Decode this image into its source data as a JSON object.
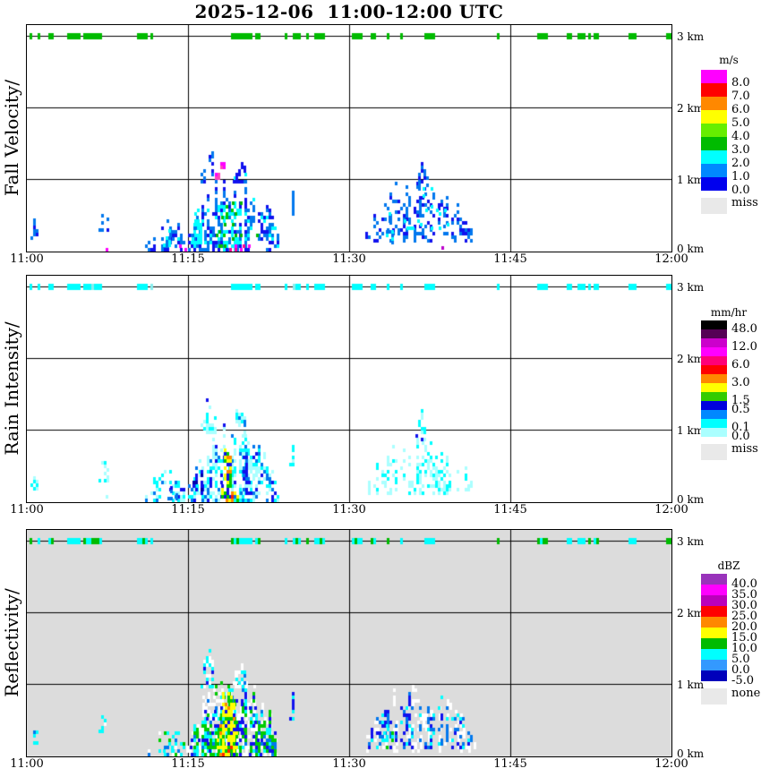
{
  "chart_data": {
    "type": "heatmap",
    "title": "2025-12-06  11:00-12:00 UTC",
    "time_axis": {
      "start": "11:00",
      "end": "12:00",
      "ticks": [
        "11:00",
        "11:15",
        "11:30",
        "11:45",
        "12:00"
      ],
      "gridlines": [
        "11:15",
        "11:30",
        "11:45"
      ],
      "minutes_total": 60
    },
    "height_axis": {
      "unit": "km",
      "min_km": 0,
      "max_km": 3.16,
      "ticks": [
        "3 km",
        "2 km",
        "1 km",
        "0 km"
      ],
      "gridlines_km": [
        3,
        2,
        1
      ]
    },
    "seed": 20251206,
    "ridge_seed": 77,
    "panels": [
      {
        "id": "fall-velocity",
        "label": "Fall Velocity/",
        "unit": "m/s",
        "background": "#FFFFFF",
        "legend": {
          "title": "m/s",
          "bands": [
            {
              "color": "#FF00FF",
              "label": "8.0"
            },
            {
              "color": "#FF0000",
              "label": "7.0"
            },
            {
              "color": "#FF8800",
              "label": "6.0"
            },
            {
              "color": "#FFFF00",
              "label": "5.0"
            },
            {
              "color": "#66EE00",
              "label": "4.0"
            },
            {
              "color": "#00BB00",
              "label": "3.0"
            },
            {
              "color": "#00FFFF",
              "label": "2.0"
            },
            {
              "color": "#0088FF",
              "label": "1.0"
            },
            {
              "color": "#0000EE",
              "label": "0.0"
            }
          ],
          "missing": {
            "color": "#E9E9E9",
            "label": "miss"
          }
        },
        "ridge": {
          "height_km": 3.0,
          "c": {
            "#00BB00": 30,
            "#2233EE": 0.5,
            "#DD00DD": 0.4
          }
        },
        "layers": [
          {
            "t": [
              0.35,
              0.95
            ],
            "h": [
              0.16,
              0.44
            ],
            "d": 0.5,
            "c": {
              "#0077EE": 2,
              "#1111EE": 1
            }
          },
          {
            "t": [
              6.7,
              7.55
            ],
            "h": [
              0.28,
              0.64
            ],
            "d": 0.5,
            "c": {
              "#0077EE": 3,
              "#1111EE": 1
            }
          },
          {
            "t": [
              6.85,
              7.6
            ],
            "h": [
              0,
              0.13
            ],
            "d": 0.35,
            "c": {
              "#FF00FF": 1,
              "#FF0099": 1
            }
          },
          {
            "t": [
              11,
              14.7
            ],
            "h": [
              0,
              0.5
            ],
            "d": 0.42,
            "c": {
              "#0077EE": 3,
              "#1111EE": 2,
              "#00FFFF": 1
            }
          },
          {
            "t": [
              12.7,
              13.6
            ],
            "h": [
              0.06,
              0.34
            ],
            "d": 0.75,
            "c": {
              "#00FFFF": 1,
              "#0077EE": 0.4
            }
          },
          {
            "t": [
              13.9,
              14.75
            ],
            "h": [
              0,
              0.14
            ],
            "d": 0.4,
            "c": {
              "#FF00FF": 1,
              "#FF44CC": 0.5
            }
          },
          {
            "t": [
              15,
              23.4
            ],
            "h": [
              0,
              1.08
            ],
            "d": 0.55,
            "c": {
              "#0077EE": 5,
              "#1111EE": 3,
              "#00FFFF": 2.5
            }
          },
          {
            "t": [
              16.2,
              17.7
            ],
            "h": [
              0.95,
              1.5
            ],
            "d": 0.5,
            "c": {
              "#1111EE": 2,
              "#0077EE": 1
            }
          },
          {
            "t": [
              19.2,
              20.3
            ],
            "h": [
              0.95,
              1.38
            ],
            "d": 0.45,
            "c": {
              "#1111EE": 2,
              "#0077EE": 1
            }
          },
          {
            "t": [
              15.3,
              16.2
            ],
            "h": [
              0.1,
              0.78
            ],
            "d": 0.8,
            "c": {
              "#00FFFF": 1
            }
          },
          {
            "t": [
              18,
              19.3
            ],
            "h": [
              0.05,
              0.95
            ],
            "d": 0.6,
            "c": {
              "#00FFFF": 1,
              "#00CC00": 0.25
            }
          },
          {
            "t": [
              16.8,
              21.4
            ],
            "h": [
              0.05,
              0.85
            ],
            "d": 0.1,
            "c": {
              "#00BB00": 1
            }
          },
          {
            "t": [
              17.5,
              18.6
            ],
            "h": [
              1.0,
              1.32
            ],
            "d": 0.5,
            "c": {
              "#FF00FF": 1.5,
              "#FF44BB": 1
            }
          },
          {
            "t": [
              18.8,
              21.6
            ],
            "h": [
              0,
              0.1
            ],
            "d": 0.3,
            "c": {
              "#FF0099": 1,
              "#FF00FF": 1
            }
          },
          {
            "t": [
              24.45,
              24.85
            ],
            "h": [
              0.5,
              0.88
            ],
            "d": 0.85,
            "c": {
              "#0077EE": 1
            }
          },
          {
            "t": [
              31.5,
              41.5
            ],
            "h": [
              0.12,
              1.02
            ],
            "d": 0.38,
            "cd": 0.8,
            "c": {
              "#0077EE": 4,
              "#1111EE": 2
            }
          },
          {
            "t": [
              32.9,
              34.1
            ],
            "h": [
              0.1,
              0.52
            ],
            "d": 0.5,
            "c": {
              "#00FFFF": 1,
              "#0077EE": 0.8
            }
          },
          {
            "t": [
              36.2,
              37.3
            ],
            "h": [
              0.85,
              1.3
            ],
            "d": 0.5,
            "c": {
              "#1111EE": 1.2,
              "#0077EE": 1
            }
          },
          {
            "t": [
              34.8,
              39.3
            ],
            "h": [
              0.3,
              0.95
            ],
            "d": 0.1,
            "c": {
              "#00FFFF": 1
            }
          },
          {
            "t": [
              38.6,
              38.95
            ],
            "h": [
              0.02,
              0.09
            ],
            "d": 0.9,
            "c": {
              "#BB00CC": 1
            }
          }
        ]
      },
      {
        "id": "rain-intensity",
        "label": "Rain Intensity/",
        "unit": "mm/hr",
        "background": "#FFFFFF",
        "legend": {
          "title": "mm/hr",
          "bands": [
            {
              "color": "#000000",
              "label": "48.0"
            },
            {
              "color": "#550055"
            },
            {
              "color": "#CC00CC",
              "label": "12.0"
            },
            {
              "color": "#FF00FF"
            },
            {
              "color": "#FF0077",
              "label": "6.0"
            },
            {
              "color": "#FF0000"
            },
            {
              "color": "#FF8800",
              "label": "3.0"
            },
            {
              "color": "#FFFF00"
            },
            {
              "color": "#33CC00",
              "label": "1.5"
            },
            {
              "color": "#0000DD",
              "label": "0.5"
            },
            {
              "color": "#0088FF"
            },
            {
              "color": "#00FFFF",
              "label": "0.1"
            },
            {
              "color": "#AAFFFF",
              "label": "0.0"
            }
          ],
          "missing": {
            "color": "#E9E9E9",
            "label": "miss"
          }
        },
        "ridge": {
          "height_km": 3.0,
          "c": {
            "#00FFFF": 20,
            "#88EEEE": 2
          }
        },
        "layers": [
          {
            "t": [
              0.35,
              0.95
            ],
            "h": [
              0.16,
              0.44
            ],
            "d": 0.5,
            "c": {
              "#00FFFF": 2,
              "#AAFFFF": 1
            }
          },
          {
            "t": [
              6.7,
              7.55
            ],
            "h": [
              0.28,
              0.64
            ],
            "d": 0.5,
            "c": {
              "#00FFFF": 2,
              "#AAFFFF": 1.2,
              "#0077EE": 0.4
            }
          },
          {
            "t": [
              6.85,
              7.6
            ],
            "h": [
              0,
              0.12
            ],
            "d": 0.3,
            "c": {
              "#AAFFFF": 1.5,
              "#1111EE": 0.4
            }
          },
          {
            "t": [
              11,
              14.7
            ],
            "h": [
              0,
              0.5
            ],
            "d": 0.45,
            "c": {
              "#AAFFFF": 2.5,
              "#00FFFF": 2,
              "#0077EE": 1,
              "#1111EE": 0.6
            }
          },
          {
            "t": [
              13.1,
              13.9
            ],
            "h": [
              0.03,
              0.28
            ],
            "d": 0.7,
            "c": {
              "#1111EE": 1,
              "#0077EE": 0.5
            }
          },
          {
            "t": [
              15,
              23.4
            ],
            "h": [
              0,
              1.08
            ],
            "d": 0.62,
            "c": {
              "#AAFFFF": 4,
              "#00FFFF": 3,
              "#0077EE": 1.5,
              "#1111EE": 1
            }
          },
          {
            "t": [
              16.2,
              17.7
            ],
            "h": [
              0.95,
              1.5
            ],
            "d": 0.5,
            "c": {
              "#AAFFFF": 1.5,
              "#00FFFF": 1,
              "#1111EE": 1
            }
          },
          {
            "t": [
              19.2,
              20.3
            ],
            "h": [
              0.95,
              1.38
            ],
            "d": 0.45,
            "c": {
              "#AAFFFF": 1.5,
              "#00FFFF": 1,
              "#0077EE": 0.7
            }
          },
          {
            "t": [
              15.4,
              16.2
            ],
            "h": [
              0.1,
              0.95
            ],
            "d": 0.7,
            "c": {
              "#1111EE": 2,
              "#0000AA": 1,
              "#0077EE": 1
            }
          },
          {
            "t": [
              18.1,
              19.4
            ],
            "h": [
              0.05,
              1.0
            ],
            "d": 0.75,
            "c": {
              "#FFFF00": 2,
              "#1111EE": 1,
              "#00CC00": 0.7,
              "#FF8800": 0.35,
              "#FF2200": 0.25
            }
          },
          {
            "t": [
              19.8,
              20.6
            ],
            "h": [
              0.05,
              0.8
            ],
            "d": 0.6,
            "c": {
              "#1111EE": 1.5,
              "#0077EE": 1
            }
          },
          {
            "t": [
              18.5,
              19.6
            ],
            "h": [
              0,
              0.2
            ],
            "d": 0.8,
            "c": {
              "#FFFF00": 1.5,
              "#FF8800": 0.8,
              "#FF2200": 0.4,
              "#00CC00": 0.5
            }
          },
          {
            "t": [
              24.45,
              24.85
            ],
            "h": [
              0.5,
              0.88
            ],
            "d": 0.8,
            "c": {
              "#00FFFF": 1,
              "#AAFFFF": 0.6
            }
          },
          {
            "t": [
              31.5,
              41.5
            ],
            "h": [
              0.1,
              0.95
            ],
            "d": 0.33,
            "cd": 0.8,
            "c": {
              "#AAFFFF": 3,
              "#00FFFF": 1.5
            }
          },
          {
            "t": [
              35.5,
              39.5
            ],
            "h": [
              0.1,
              0.75
            ],
            "d": 0.35,
            "c": {
              "#00FFFF": 1,
              "#AAFFFF": 1
            }
          },
          {
            "t": [
              36.2,
              37
            ],
            "h": [
              0.85,
              1.28
            ],
            "d": 0.6,
            "c": {
              "#00FFFF": 1.5,
              "#AAFFFF": 0.5,
              "#1111EE": 0.15
            }
          }
        ]
      },
      {
        "id": "reflectivity",
        "label": "Reflectivity/",
        "unit": "dBZ",
        "background": "#DCDCDC",
        "legend": {
          "title": "dBZ",
          "bands": [
            {
              "color": "#9933BB",
              "label": "40.0"
            },
            {
              "color": "#FF00FF",
              "label": "35.0"
            },
            {
              "color": "#BB00BB",
              "label": "30.0"
            },
            {
              "color": "#FF0000",
              "label": "25.0"
            },
            {
              "color": "#FF8800",
              "label": "20.0"
            },
            {
              "color": "#FFFF00",
              "label": "15.0"
            },
            {
              "color": "#00BB00",
              "label": "10.0"
            },
            {
              "color": "#00FFFF",
              "label": "5.0"
            },
            {
              "color": "#3399FF",
              "label": "0.0"
            },
            {
              "color": "#0000BB",
              "label": "-5.0"
            }
          ],
          "missing": {
            "color": "#E9E9E9",
            "label": "none"
          }
        },
        "ridge": {
          "height_km": 3.0,
          "c": {
            "#00BB00": 10,
            "#00FFFF": 12
          }
        },
        "layers": [
          {
            "t": [
              0.35,
              0.95
            ],
            "h": [
              0.16,
              0.44
            ],
            "d": 0.5,
            "c": {
              "#00FFFF": 1.5,
              "#0077EE": 1
            }
          },
          {
            "t": [
              6.7,
              7.55
            ],
            "h": [
              0.28,
              0.64
            ],
            "d": 0.55,
            "c": {
              "#00FFFF": 1.5,
              "#FFFFFF": 1,
              "#0077EE": 0.7
            }
          },
          {
            "t": [
              11,
              14.7
            ],
            "h": [
              0,
              0.5
            ],
            "d": 0.5,
            "c": {
              "#00FFFF": 1.5,
              "#00CC00": 1.2,
              "#FFFFFF": 1,
              "#0077EE": 0.8
            }
          },
          {
            "t": [
              12.7,
              13.6
            ],
            "h": [
              0.05,
              0.35
            ],
            "d": 0.7,
            "c": {
              "#00CC00": 1,
              "#00FFFF": 0.8
            }
          },
          {
            "t": [
              14.8,
              23.6
            ],
            "h": [
              0,
              1.12
            ],
            "d": 0.5,
            "cd": 0.95,
            "c": {
              "#FFFFFF": 1
            }
          },
          {
            "t": [
              15,
              23.4
            ],
            "h": [
              0,
              1.06
            ],
            "d": 0.6,
            "c": {
              "#00CC00": 3,
              "#00FFFF": 2,
              "#0077EE": 1,
              "#1111EE": 0.8
            }
          },
          {
            "t": [
              16.2,
              17.7
            ],
            "h": [
              0.95,
              1.5
            ],
            "d": 0.5,
            "c": {
              "#FFFFFF": 1,
              "#00FFFF": 1,
              "#1111EE": 0.8
            }
          },
          {
            "t": [
              19.2,
              20.3
            ],
            "h": [
              0.95,
              1.38
            ],
            "d": 0.45,
            "c": {
              "#00FFFF": 1,
              "#FFFFFF": 0.8,
              "#0077EE": 0.6
            }
          },
          {
            "t": [
              17.7,
              19.6
            ],
            "h": [
              0,
              1.02
            ],
            "d": 0.8,
            "c": {
              "#FFFF00": 3,
              "#00CC00": 1,
              "#FF8800": 0.4
            }
          },
          {
            "t": [
              18.2,
              19.3
            ],
            "h": [
              0,
              0.3
            ],
            "d": 0.5,
            "c": {
              "#FF8800": 1,
              "#FF2200": 0.8,
              "#FFFF00": 1
            }
          },
          {
            "t": [
              15.2,
              22.8
            ],
            "h": [
              0,
              0.9
            ],
            "d": 0.12,
            "c": {
              "#1111EE": 1
            }
          },
          {
            "t": [
              24.45,
              24.85
            ],
            "h": [
              0.5,
              0.95
            ],
            "d": 0.7,
            "c": {
              "#1111EE": 1,
              "#00FFFF": 0.5
            }
          },
          {
            "t": [
              31.3,
              41.7
            ],
            "h": [
              0.05,
              1.05
            ],
            "d": 0.3,
            "cd": 0.8,
            "c": {
              "#FFFFFF": 1
            }
          },
          {
            "t": [
              31.5,
              41.5
            ],
            "h": [
              0.1,
              1.0
            ],
            "d": 0.4,
            "cd": 0.8,
            "c": {
              "#0077EE": 2,
              "#1111EE": 1.5,
              "#00FFFF": 1
            }
          },
          {
            "t": [
              32.9,
              34.1
            ],
            "h": [
              0.1,
              0.5
            ],
            "d": 0.5,
            "c": {
              "#00FFFF": 1,
              "#00CC00": 0.4
            }
          }
        ]
      }
    ]
  }
}
